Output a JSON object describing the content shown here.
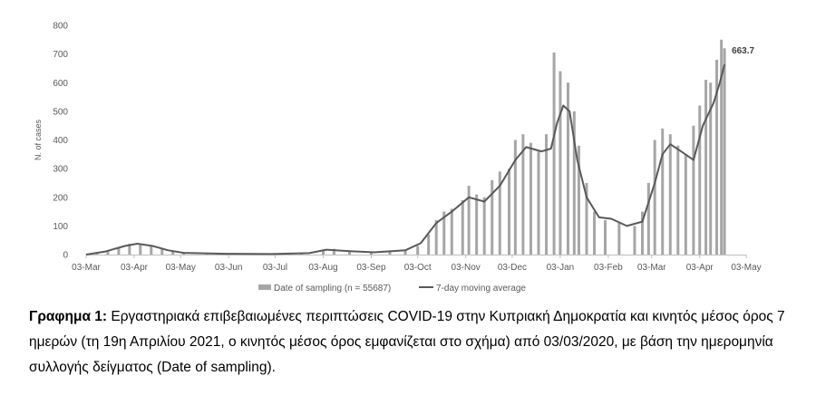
{
  "chart_data": {
    "type": "bar",
    "ylabel": "N. of cases",
    "ylim": [
      0,
      800
    ],
    "yticks": [
      0,
      100,
      200,
      300,
      400,
      500,
      600,
      700,
      800
    ],
    "x_start": "03-Mar-2020",
    "x_end": "03-May-2021",
    "xticks": [
      "03-Mar",
      "03-Apr",
      "03-May",
      "03-Jun",
      "03-Jul",
      "03-Aug",
      "03-Sep",
      "03-Oct",
      "03-Nov",
      "03-Dec",
      "03-Jan",
      "03-Feb",
      "03-Mar",
      "03-Apr",
      "03-May"
    ],
    "grid": false,
    "legend_position": "bottom",
    "series": [
      {
        "name": "Date of sampling (n = 55687)",
        "kind": "bars",
        "color": "#a6a6a6",
        "values": [
          {
            "date": "2020-03-03",
            "y": 1
          },
          {
            "date": "2020-03-10",
            "y": 8
          },
          {
            "date": "2020-03-17",
            "y": 15
          },
          {
            "date": "2020-03-24",
            "y": 25
          },
          {
            "date": "2020-03-31",
            "y": 38
          },
          {
            "date": "2020-04-07",
            "y": 35
          },
          {
            "date": "2020-04-14",
            "y": 30
          },
          {
            "date": "2020-04-21",
            "y": 20
          },
          {
            "date": "2020-04-28",
            "y": 10
          },
          {
            "date": "2020-05-05",
            "y": 6
          },
          {
            "date": "2020-05-20",
            "y": 4
          },
          {
            "date": "2020-06-10",
            "y": 2
          },
          {
            "date": "2020-07-01",
            "y": 2
          },
          {
            "date": "2020-07-20",
            "y": 4
          },
          {
            "date": "2020-08-03",
            "y": 15
          },
          {
            "date": "2020-08-10",
            "y": 20
          },
          {
            "date": "2020-08-20",
            "y": 12
          },
          {
            "date": "2020-09-03",
            "y": 8
          },
          {
            "date": "2020-09-15",
            "y": 10
          },
          {
            "date": "2020-09-25",
            "y": 15
          },
          {
            "date": "2020-10-03",
            "y": 30
          },
          {
            "date": "2020-10-10",
            "y": 70
          },
          {
            "date": "2020-10-15",
            "y": 120
          },
          {
            "date": "2020-10-20",
            "y": 150
          },
          {
            "date": "2020-10-25",
            "y": 160
          },
          {
            "date": "2020-11-01",
            "y": 190
          },
          {
            "date": "2020-11-05",
            "y": 240
          },
          {
            "date": "2020-11-10",
            "y": 210
          },
          {
            "date": "2020-11-15",
            "y": 200
          },
          {
            "date": "2020-11-20",
            "y": 260
          },
          {
            "date": "2020-11-25",
            "y": 290
          },
          {
            "date": "2020-12-01",
            "y": 300
          },
          {
            "date": "2020-12-05",
            "y": 400
          },
          {
            "date": "2020-12-10",
            "y": 420
          },
          {
            "date": "2020-12-15",
            "y": 390
          },
          {
            "date": "2020-12-20",
            "y": 360
          },
          {
            "date": "2020-12-25",
            "y": 420
          },
          {
            "date": "2020-12-30",
            "y": 705
          },
          {
            "date": "2021-01-03",
            "y": 640
          },
          {
            "date": "2021-01-08",
            "y": 600
          },
          {
            "date": "2021-01-12",
            "y": 500
          },
          {
            "date": "2021-01-15",
            "y": 380
          },
          {
            "date": "2021-01-20",
            "y": 250
          },
          {
            "date": "2021-01-25",
            "y": 150
          },
          {
            "date": "2021-02-01",
            "y": 120
          },
          {
            "date": "2021-02-10",
            "y": 110
          },
          {
            "date": "2021-02-20",
            "y": 100
          },
          {
            "date": "2021-02-25",
            "y": 150
          },
          {
            "date": "2021-03-01",
            "y": 250
          },
          {
            "date": "2021-03-05",
            "y": 400
          },
          {
            "date": "2021-03-10",
            "y": 440
          },
          {
            "date": "2021-03-15",
            "y": 420
          },
          {
            "date": "2021-03-20",
            "y": 380
          },
          {
            "date": "2021-03-25",
            "y": 350
          },
          {
            "date": "2021-03-30",
            "y": 450
          },
          {
            "date": "2021-04-03",
            "y": 520
          },
          {
            "date": "2021-04-07",
            "y": 610
          },
          {
            "date": "2021-04-10",
            "y": 600
          },
          {
            "date": "2021-04-14",
            "y": 680
          },
          {
            "date": "2021-04-17",
            "y": 750
          },
          {
            "date": "2021-04-19",
            "y": 720
          }
        ]
      },
      {
        "name": "7-day moving average",
        "kind": "line",
        "color": "#595959",
        "values": [
          {
            "date": "2020-03-03",
            "y": 0
          },
          {
            "date": "2020-03-15",
            "y": 10
          },
          {
            "date": "2020-03-28",
            "y": 30
          },
          {
            "date": "2020-04-05",
            "y": 38
          },
          {
            "date": "2020-04-15",
            "y": 30
          },
          {
            "date": "2020-04-25",
            "y": 15
          },
          {
            "date": "2020-05-05",
            "y": 6
          },
          {
            "date": "2020-06-01",
            "y": 3
          },
          {
            "date": "2020-07-01",
            "y": 2
          },
          {
            "date": "2020-07-25",
            "y": 5
          },
          {
            "date": "2020-08-05",
            "y": 17
          },
          {
            "date": "2020-08-20",
            "y": 12
          },
          {
            "date": "2020-09-05",
            "y": 8
          },
          {
            "date": "2020-09-25",
            "y": 15
          },
          {
            "date": "2020-10-05",
            "y": 40
          },
          {
            "date": "2020-10-15",
            "y": 110
          },
          {
            "date": "2020-10-25",
            "y": 150
          },
          {
            "date": "2020-11-05",
            "y": 200
          },
          {
            "date": "2020-11-15",
            "y": 185
          },
          {
            "date": "2020-11-25",
            "y": 240
          },
          {
            "date": "2020-12-05",
            "y": 330
          },
          {
            "date": "2020-12-12",
            "y": 375
          },
          {
            "date": "2020-12-22",
            "y": 360
          },
          {
            "date": "2020-12-28",
            "y": 370
          },
          {
            "date": "2021-01-01",
            "y": 460
          },
          {
            "date": "2021-01-05",
            "y": 520
          },
          {
            "date": "2021-01-09",
            "y": 500
          },
          {
            "date": "2021-01-14",
            "y": 330
          },
          {
            "date": "2021-01-20",
            "y": 200
          },
          {
            "date": "2021-01-28",
            "y": 130
          },
          {
            "date": "2021-02-05",
            "y": 125
          },
          {
            "date": "2021-02-15",
            "y": 100
          },
          {
            "date": "2021-02-25",
            "y": 115
          },
          {
            "date": "2021-03-05",
            "y": 250
          },
          {
            "date": "2021-03-10",
            "y": 350
          },
          {
            "date": "2021-03-15",
            "y": 385
          },
          {
            "date": "2021-03-22",
            "y": 360
          },
          {
            "date": "2021-03-30",
            "y": 330
          },
          {
            "date": "2021-04-05",
            "y": 450
          },
          {
            "date": "2021-04-12",
            "y": 530
          },
          {
            "date": "2021-04-16",
            "y": 600
          },
          {
            "date": "2021-04-19",
            "y": 663.7
          }
        ]
      }
    ],
    "annotation": {
      "text": "663.7",
      "date": "2021-04-19",
      "y": 663.7
    }
  },
  "caption": {
    "bold": "Γραφημα 1:",
    "text": " Εργαστηριακά επιβεβαιωμένες περιπτώσεις COVID-19 στην Κυπριακή Δημοκρατία και κινητός μέσος όρος 7 ημερών (τη 19η Απριλίου 2021, ο κινητός μέσος όρος εμφανίζεται στο σχήμα) από 03/03/2020, με βάση την ημερομηνία συλλογής δείγματος (Date of sampling)."
  }
}
